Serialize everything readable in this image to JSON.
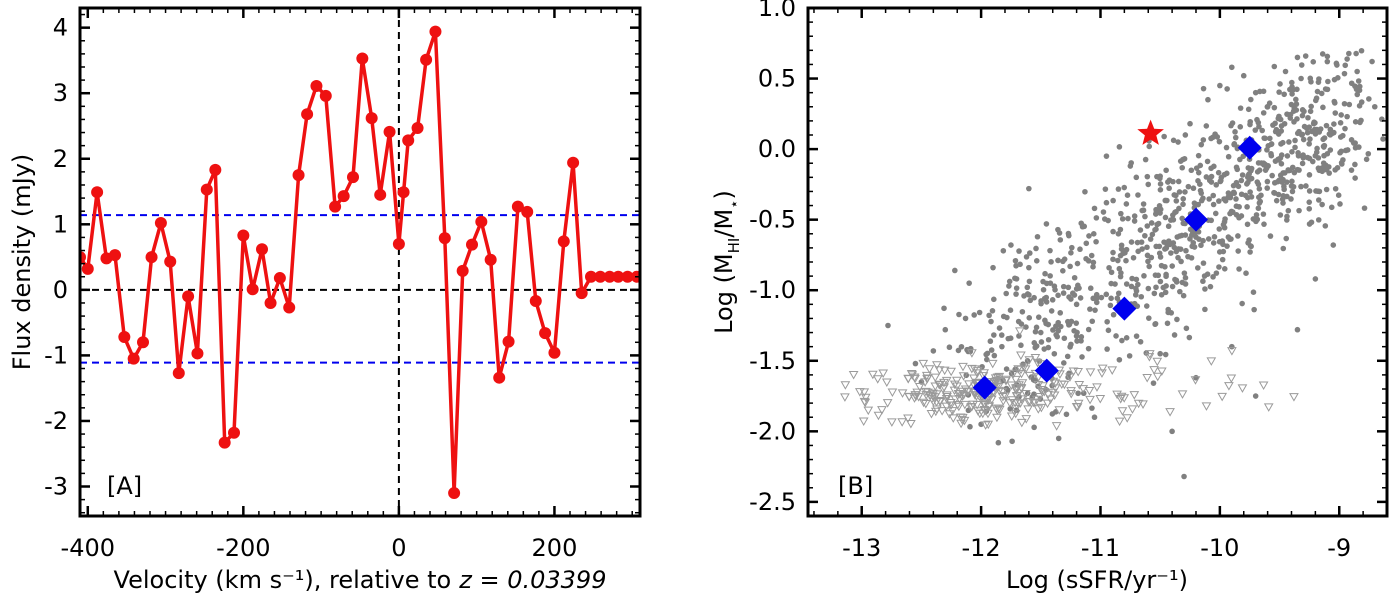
{
  "chart_data": [
    {
      "panel_label": "[A]",
      "type": "line",
      "xlabel": "Velocity (km s⁻¹), relative to",
      "xlabel_z": "z = 0.03399",
      "ylabel": "Flux density (mJy)",
      "xlim": [
        -410,
        310
      ],
      "ylim": [
        -3.45,
        4.3
      ],
      "xticks": [
        -400,
        -200,
        0,
        200
      ],
      "xtick_labels": [
        "-400",
        "-200",
        "0",
        "200"
      ],
      "yticks": [
        -3,
        -2,
        -1,
        0,
        1,
        2,
        3,
        4
      ],
      "ytick_labels": [
        "-3",
        "-2",
        "-1",
        "0",
        "1",
        "2",
        "3",
        "4"
      ],
      "series": [
        {
          "color": "#ee1111",
          "x": [
            -410,
            -400,
            -388,
            -376,
            -365,
            -353,
            -341,
            -329,
            -318,
            -306,
            -294,
            -283,
            -271,
            -259,
            -247,
            -236,
            -224,
            -212,
            -200,
            -188,
            -176,
            -165,
            -153,
            -141,
            -129,
            -118,
            -106,
            -94,
            -82,
            -71,
            -59,
            -47,
            -35,
            -24,
            -12,
            0,
            6,
            12,
            24,
            35,
            47,
            59,
            71,
            82,
            94,
            106,
            118,
            129,
            141,
            153,
            165,
            176,
            188,
            200,
            212,
            224,
            235,
            247,
            259,
            271,
            282,
            294,
            306
          ],
          "y": [
            0.5,
            0.32,
            1.49,
            0.48,
            0.53,
            -0.72,
            -1.05,
            -0.8,
            0.5,
            1.02,
            0.43,
            -1.27,
            -0.1,
            -0.97,
            1.53,
            1.83,
            -2.33,
            -2.18,
            0.83,
            0.01,
            0.62,
            -0.2,
            0.18,
            -0.27,
            1.75,
            2.68,
            3.11,
            2.96,
            1.27,
            1.43,
            1.72,
            3.53,
            2.62,
            1.45,
            2.41,
            0.7,
            1.49,
            2.28,
            2.47,
            3.51,
            3.94,
            0.79,
            -3.1,
            0.29,
            0.69,
            1.04,
            0.46,
            -1.34,
            -0.79,
            1.27,
            1.19,
            -0.17,
            -0.66,
            -0.96,
            0.74,
            1.94,
            -0.05,
            0.2,
            0.2,
            0.2,
            0.2,
            0.2,
            0.2
          ]
        }
      ],
      "hlines": [
        {
          "y": 1.14,
          "color": "#0000ee",
          "style": "dashed"
        },
        {
          "y": -1.11,
          "color": "#0000ee",
          "style": "dashed"
        },
        {
          "y": 0,
          "color": "#000000",
          "style": "dashed"
        }
      ],
      "vlines": [
        {
          "x": 0,
          "color": "#000000",
          "style": "dashed"
        }
      ]
    },
    {
      "panel_label": "[B]",
      "type": "scatter",
      "xlabel": "Log (sSFR/yr⁻¹)",
      "ylabel": "Log (M",
      "ylabel_sub": "HI",
      "ylabel_mid": "/M",
      "ylabel_sub2": "⋆",
      "ylabel_end": ")",
      "xlim": [
        -13.45,
        -8.6
      ],
      "ylim": [
        -2.6,
        1.0
      ],
      "xticks": [
        -13,
        -12,
        -11,
        -10,
        -9
      ],
      "xtick_labels": [
        "-13",
        "-12",
        "-11",
        "-10",
        "-9"
      ],
      "yticks": [
        -2.5,
        -2.0,
        -1.5,
        -1.0,
        -0.5,
        0.0,
        0.5,
        1.0
      ],
      "ytick_labels": [
        "-2.5",
        "-2.0",
        "-1.5",
        "-1.0",
        "-0.5",
        "0.0",
        "0.5",
        "1.0"
      ],
      "detections_color": "#808080",
      "nondetections_color": "#9a9a9a",
      "sample_points_approx": [
        [
          -12.78,
          -1.25
        ],
        [
          -12.55,
          -1.52
        ],
        [
          -12.4,
          -1.43
        ],
        [
          -12.3,
          -1.28
        ],
        [
          -12.22,
          -0.86
        ],
        [
          -12.1,
          -0.95
        ],
        [
          -11.9,
          -0.84
        ],
        [
          -11.75,
          -0.68
        ],
        [
          -11.6,
          -0.84
        ],
        [
          -11.42,
          -0.95
        ],
        [
          -11.3,
          -0.78
        ],
        [
          -11.15,
          -0.55
        ],
        [
          -11.05,
          -0.42
        ],
        [
          -10.95,
          -0.38
        ],
        [
          -10.85,
          -0.6
        ],
        [
          -10.7,
          -0.2
        ],
        [
          -10.6,
          -0.25
        ],
        [
          -10.45,
          -0.15
        ],
        [
          -10.35,
          0.05
        ],
        [
          -10.25,
          0.18
        ],
        [
          -10.1,
          0.35
        ],
        [
          -10.0,
          0.45
        ],
        [
          -9.9,
          0.58
        ],
        [
          -9.8,
          0.52
        ],
        [
          -9.7,
          0.4
        ],
        [
          -9.6,
          0.3
        ],
        [
          -9.45,
          0.55
        ],
        [
          -9.35,
          0.65
        ],
        [
          -9.1,
          0.62
        ],
        [
          -8.85,
          0.55
        ],
        [
          -9.05,
          -0.68
        ],
        [
          -9.2,
          -0.92
        ],
        [
          -9.35,
          -1.28
        ],
        [
          -9.7,
          -1.75
        ],
        [
          -10.4,
          -2.0
        ],
        [
          -10.3,
          -2.32
        ],
        [
          -11.6,
          -0.28
        ],
        [
          -10.95,
          -0.05
        ],
        [
          -10.75,
          -0.12
        ],
        [
          -11.2,
          -1.1
        ],
        [
          -11.5,
          -1.3
        ],
        [
          -10.5,
          -1.45
        ],
        [
          -10.2,
          -1.62
        ],
        [
          -9.9,
          -1.4
        ],
        [
          -11.05,
          -1.9
        ],
        [
          -11.35,
          -2.05
        ],
        [
          -12.0,
          -1.95
        ],
        [
          -12.5,
          -1.65
        ]
      ],
      "means": {
        "color": "#0000ee",
        "x": [
          -11.97,
          -11.45,
          -10.8,
          -10.2,
          -9.75
        ],
        "y": [
          -1.69,
          -1.57,
          -1.13,
          -0.5,
          0.01
        ]
      },
      "highlight": {
        "color": "#ee1111",
        "shape": "star",
        "x": -10.58,
        "y": 0.11
      }
    }
  ]
}
